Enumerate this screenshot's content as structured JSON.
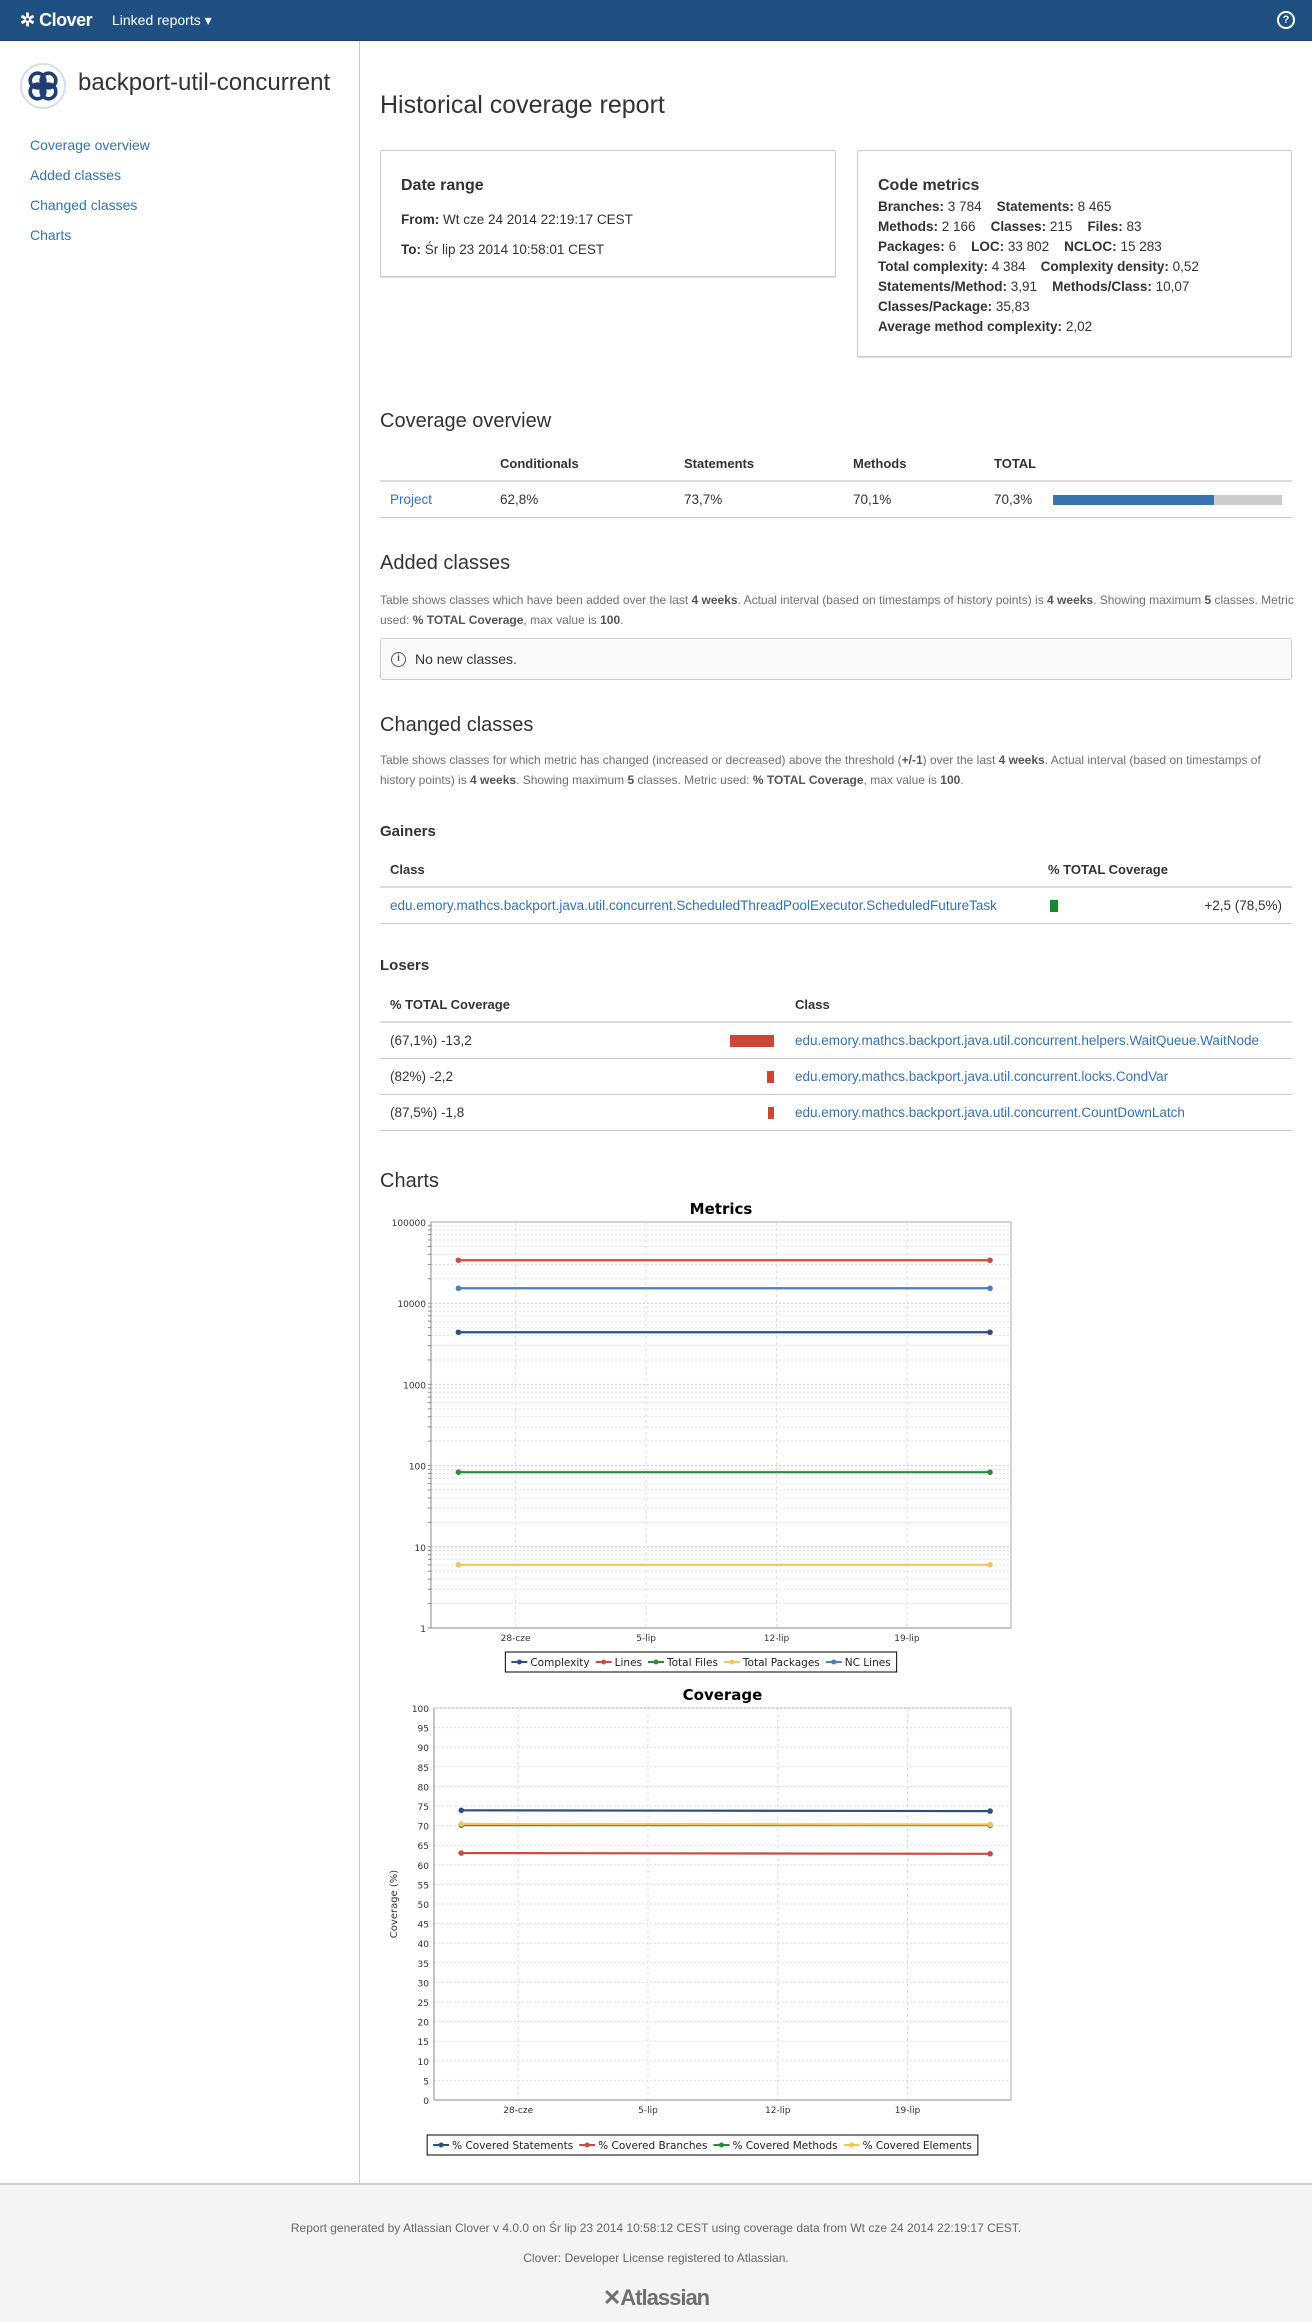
{
  "navbar": {
    "brand": "Clover",
    "linked_reports": "Linked reports ▾",
    "help_icon": "question-circle-icon",
    "color": "#205081"
  },
  "sidebar": {
    "project_name": "backport-util-concurrent",
    "items": [
      {
        "label": "Coverage overview"
      },
      {
        "label": "Added classes"
      },
      {
        "label": "Changed classes"
      },
      {
        "label": "Charts"
      }
    ]
  },
  "page_title": "Historical coverage report",
  "date_range": {
    "title": "Date range",
    "from_label": "From:",
    "from": "Wt cze 24 2014 22:19:17 CEST",
    "to_label": "To:",
    "to": "Śr lip 23 2014 10:58:01 CEST"
  },
  "code_metrics": {
    "title": "Code metrics",
    "lines": [
      [
        {
          "label": "Branches:",
          "value": "3 784"
        },
        {
          "label": "Statements:",
          "value": "8 465"
        }
      ],
      [
        {
          "label": "Methods:",
          "value": "2 166"
        },
        {
          "label": "Classes:",
          "value": "215"
        },
        {
          "label": "Files:",
          "value": "83"
        }
      ],
      [
        {
          "label": "Packages:",
          "value": "6"
        },
        {
          "label": "LOC:",
          "value": "33 802"
        },
        {
          "label": "NCLOC:",
          "value": "15 283"
        }
      ],
      [
        {
          "label": "Total complexity:",
          "value": "4 384"
        },
        {
          "label": "Complexity density:",
          "value": "0,52"
        }
      ],
      [
        {
          "label": "Statements/Method:",
          "value": "3,91"
        },
        {
          "label": "Methods/Class:",
          "value": "10,07"
        }
      ],
      [
        {
          "label": "Classes/Package:",
          "value": "35,83"
        }
      ],
      [
        {
          "label": "Average method complexity:",
          "value": "2,02"
        }
      ]
    ]
  },
  "coverage_overview": {
    "title": "Coverage overview",
    "headers": [
      "Conditionals",
      "Statements",
      "Methods",
      "TOTAL"
    ],
    "row": {
      "name": "Project",
      "conditionals": "62,8%",
      "statements": "73,7%",
      "methods": "70,1%",
      "total": "70,3%",
      "total_percent": 70.3
    },
    "bar_colors": {
      "covered": "#3b73af",
      "uncovered": "#ccc"
    }
  },
  "added_classes": {
    "title": "Added classes",
    "desc": [
      "Table shows classes which have been added over the last ",
      "4 weeks",
      ". Actual interval (based on timestamps of history points) is ",
      "4 weeks",
      ". Showing maximum ",
      "5",
      " classes. Metric used: ",
      "% TOTAL Coverage",
      ", max value is ",
      "100",
      "."
    ],
    "empty": "No new classes."
  },
  "changed_classes": {
    "title": "Changed classes",
    "desc": [
      "Table shows classes for which metric has changed (increased or decreased) above the threshold (",
      "+/-1",
      ") over the last ",
      "4 weeks",
      ". Actual interval (based on timestamps of history points) is ",
      "4 weeks",
      ". Showing maximum ",
      "5",
      " classes. Metric used: ",
      "% TOTAL Coverage",
      ", max value is ",
      "100",
      "."
    ],
    "gainers": {
      "title": "Gainers",
      "headers": [
        "Class",
        "% TOTAL Coverage"
      ],
      "rows": [
        {
          "class": "edu.emory.mathcs.backport.java.util.concurrent.ScheduledThreadPoolExecutor.ScheduledFutureTask",
          "value": "+2,5 (78,5%)",
          "delta": 2.5
        }
      ],
      "color": "#14892c"
    },
    "losers": {
      "title": "Losers",
      "headers": [
        "% TOTAL Coverage",
        "Class"
      ],
      "rows": [
        {
          "value": "(67,1%) -13,2",
          "delta": 13.2,
          "class": "edu.emory.mathcs.backport.java.util.concurrent.helpers.WaitQueue.WaitNode"
        },
        {
          "value": "(82%) -2,2",
          "delta": 2.2,
          "class": "edu.emory.mathcs.backport.java.util.concurrent.locks.CondVar"
        },
        {
          "value": "(87,5%) -1,8",
          "delta": 1.8,
          "class": "edu.emory.mathcs.backport.java.util.concurrent.CountDownLatch"
        }
      ],
      "color": "#d04437"
    }
  },
  "charts_title": "Charts",
  "chart_data": [
    {
      "type": "line",
      "title": "Metrics",
      "ylabel": "",
      "yscale": "log",
      "ylim": [
        1,
        100000
      ],
      "yticks": [
        "1",
        "10",
        "100",
        "1000",
        "10000",
        "100000"
      ],
      "x": [
        "2014-06-24T22:19:17",
        "2014-07-23T10:58:01"
      ],
      "xlim": [
        "2014-06-23T11:00:00",
        "2014-07-24T14:00:00"
      ],
      "xticks": [
        {
          "date": "2014-06-28",
          "label": "28-cze"
        },
        {
          "date": "2014-07-05",
          "label": "5-lip"
        },
        {
          "date": "2014-07-12",
          "label": "12-lip"
        },
        {
          "date": "2014-07-19",
          "label": "19-lip"
        }
      ],
      "grid": true,
      "legend": "bottom",
      "series": [
        {
          "name": "Complexity",
          "values": [
            4384,
            4384
          ],
          "color": "#2e4f7e"
        },
        {
          "name": "Lines",
          "values": [
            33802,
            33802
          ],
          "color": "#cc4b3f"
        },
        {
          "name": "Total Files",
          "values": [
            83,
            83
          ],
          "color": "#2a8a3a"
        },
        {
          "name": "Total Packages",
          "values": [
            6,
            6
          ],
          "color": "#f2c55c"
        },
        {
          "name": "NC Lines",
          "values": [
            15283,
            15283
          ],
          "color": "#4a7fbf"
        }
      ]
    },
    {
      "type": "line",
      "title": "Coverage",
      "ylabel": "Coverage (%)",
      "yscale": "linear",
      "ylim": [
        0,
        100
      ],
      "yticks": [
        "0",
        "5",
        "10",
        "15",
        "20",
        "25",
        "30",
        "35",
        "40",
        "45",
        "50",
        "55",
        "60",
        "65",
        "70",
        "75",
        "80",
        "85",
        "90",
        "95",
        "100"
      ],
      "x": [
        "2014-06-24T22:19:17",
        "2014-07-23T10:58:01"
      ],
      "xlim": [
        "2014-06-23T11:00:00",
        "2014-07-24T14:00:00"
      ],
      "xticks": [
        {
          "date": "2014-06-28",
          "label": "28-cze"
        },
        {
          "date": "2014-07-05",
          "label": "5-lip"
        },
        {
          "date": "2014-07-12",
          "label": "12-lip"
        },
        {
          "date": "2014-07-19",
          "label": "19-lip"
        }
      ],
      "grid": true,
      "legend": "bottom",
      "series": [
        {
          "name": "% Covered Statements",
          "values": [
            73.9,
            73.7
          ],
          "color": "#2e4f7e"
        },
        {
          "name": "% Covered Branches",
          "values": [
            63.0,
            62.8
          ],
          "color": "#cc4b3f"
        },
        {
          "name": "% Covered Methods",
          "values": [
            70.1,
            70.1
          ],
          "color": "#2a8a3a"
        },
        {
          "name": "% Covered Elements",
          "values": [
            70.4,
            70.3
          ],
          "color": "#f2c55c"
        }
      ]
    }
  ],
  "footer": {
    "generated": "Report generated by Atlassian Clover v 4.0.0 on Śr lip 23 2014 10:58:12 CEST using coverage data from Wt cze 24 2014 22:19:17 CEST.",
    "license": "Clover: Developer License registered to Atlassian.",
    "logo": "Atlassian"
  }
}
